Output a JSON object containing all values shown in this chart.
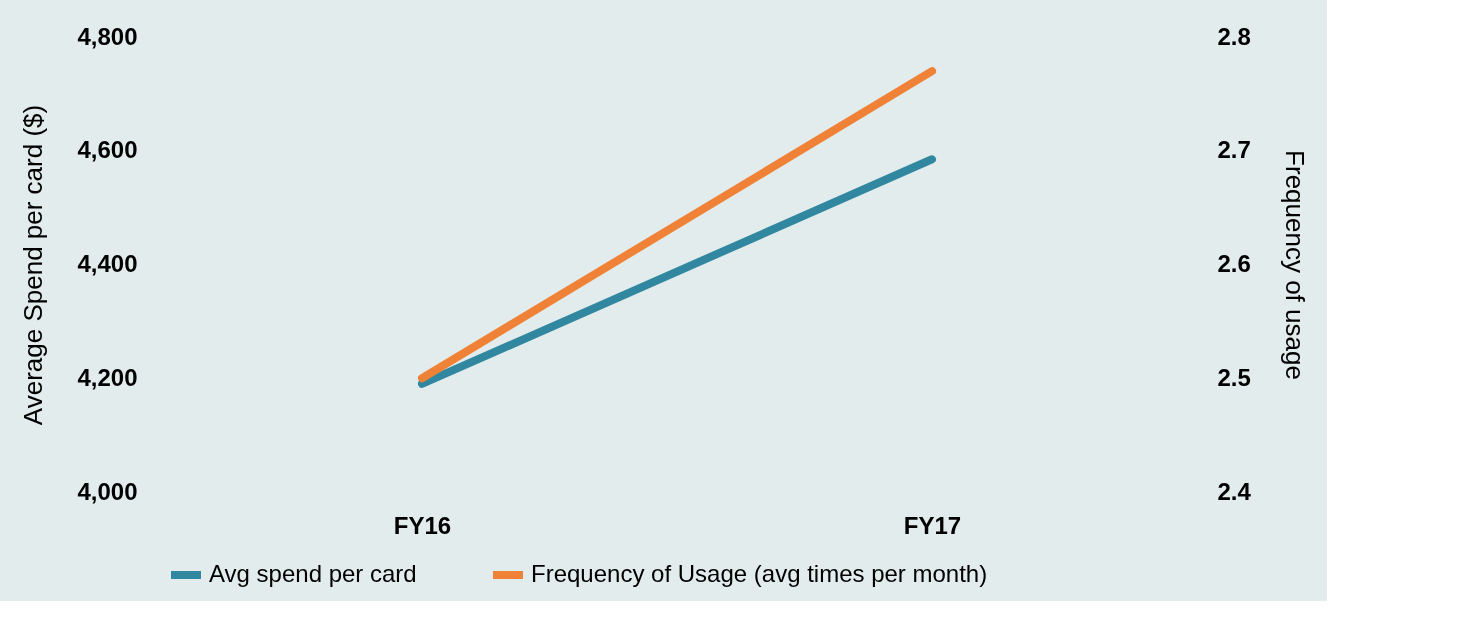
{
  "chart_data": {
    "type": "line",
    "categories": [
      "FY16",
      "FY17"
    ],
    "ylabel": "Average Spend per card ($)",
    "y2label": "Frequency of usage",
    "series": [
      {
        "name": "Avg spend per card",
        "color": "#31879f",
        "values": [
          4190,
          4585
        ]
      },
      {
        "name": "Frequency of Usage (avg times per month)",
        "color": "#f08237",
        "values": [
          2.5,
          2.77
        ],
        "axis": "y2"
      }
    ],
    "ylim": [
      4000,
      4800
    ],
    "yticks": [
      {
        "value": 4000,
        "label": "4,000"
      },
      {
        "value": 4200,
        "label": "4,200"
      },
      {
        "value": 4400,
        "label": "4,400"
      },
      {
        "value": 4600,
        "label": "4,600"
      },
      {
        "value": 4800,
        "label": "4,800"
      }
    ],
    "y2lim": [
      2.4,
      2.8
    ],
    "y2ticks": [
      2.4,
      2.5,
      2.6,
      2.7,
      2.8
    ],
    "grid": false,
    "legend": "bottom",
    "marker": "none",
    "line_style": "solid"
  }
}
